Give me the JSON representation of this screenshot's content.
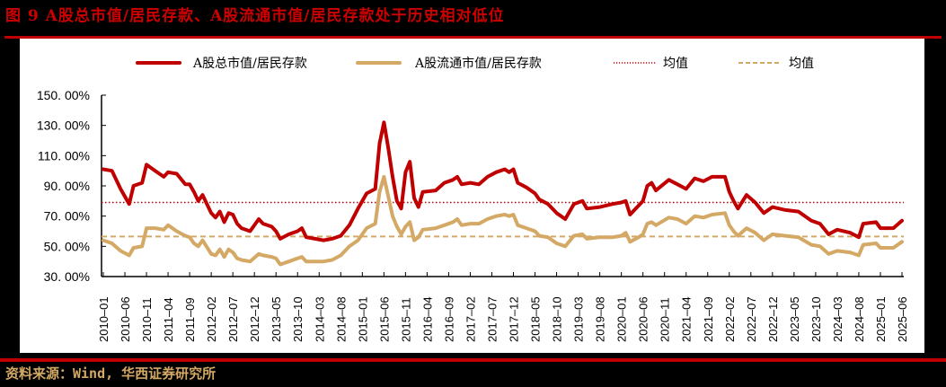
{
  "title": "图 9 A股总市值/居民存款、A股流通市值/居民存款处于历史相对低位",
  "source": "资料来源：Wind, 华西证券研究所",
  "colors": {
    "accent": "#c00000",
    "series_total": "#c00000",
    "series_float": "#d4a865",
    "background": "#000000",
    "panel": "#ffffff"
  },
  "legend": [
    {
      "label": "A股总市值/居民存款",
      "style": "solid",
      "color": "#c00000"
    },
    {
      "label": "A股流通市值/居民存款",
      "style": "solid",
      "color": "#d4a865"
    },
    {
      "label": "均值",
      "style": "dotted",
      "color": "#c00000"
    },
    {
      "label": "均值",
      "style": "dashed",
      "color": "#d4a865"
    }
  ],
  "chart_data": {
    "type": "line",
    "title": "A股总市值/居民存款、A股流通市值/居民存款处于历史相对低位",
    "xlabel": "",
    "ylabel": "",
    "ylim": [
      30,
      150
    ],
    "yticks": [
      "30.00%",
      "50.00%",
      "70.00%",
      "90.00%",
      "110.00%",
      "130.00%",
      "150.00%"
    ],
    "xticks": [
      "2010-01",
      "2010-06",
      "2010-11",
      "2011-04",
      "2011-09",
      "2012-02",
      "2012-07",
      "2012-12",
      "2013-05",
      "2013-10",
      "2014-03",
      "2014-08",
      "2015-01",
      "2015-06",
      "2015-11",
      "2016-04",
      "2016-09",
      "2017-02",
      "2017-07",
      "2017-12",
      "2018-05",
      "2018-10",
      "2019-03",
      "2019-08",
      "2020-01",
      "2020-06",
      "2020-11",
      "2021-04",
      "2021-09",
      "2022-02",
      "2022-07",
      "2022-12",
      "2023-05",
      "2023-10",
      "2024-03",
      "2024-08",
      "2025-01",
      "2025-06"
    ],
    "grid": false,
    "legend_position": "top",
    "x": [
      "2010-01",
      "2010-03",
      "2010-05",
      "2010-07",
      "2010-08",
      "2010-10",
      "2010-11",
      "2011-01",
      "2011-03",
      "2011-04",
      "2011-06",
      "2011-08",
      "2011-09",
      "2011-10",
      "2011-11",
      "2011-12",
      "2012-02",
      "2012-03",
      "2012-04",
      "2012-05",
      "2012-06",
      "2012-07",
      "2012-08",
      "2012-09",
      "2012-11",
      "2013-01",
      "2013-02",
      "2013-04",
      "2013-05",
      "2013-06",
      "2013-08",
      "2013-10",
      "2013-11",
      "2013-12",
      "2014-02",
      "2014-04",
      "2014-06",
      "2014-08",
      "2014-10",
      "2014-12",
      "2015-02",
      "2015-04",
      "2015-05",
      "2015-06",
      "2015-07",
      "2015-08",
      "2015-09",
      "2015-10",
      "2015-11",
      "2015-12",
      "2016-01",
      "2016-02",
      "2016-03",
      "2016-06",
      "2016-08",
      "2016-10",
      "2016-11",
      "2016-12",
      "2017-02",
      "2017-04",
      "2017-06",
      "2017-08",
      "2017-10",
      "2017-11",
      "2017-12",
      "2018-01",
      "2018-03",
      "2018-05",
      "2018-06",
      "2018-08",
      "2018-10",
      "2018-12",
      "2019-02",
      "2019-04",
      "2019-05",
      "2019-08",
      "2019-11",
      "2020-01",
      "2020-02",
      "2020-03",
      "2020-05",
      "2020-06",
      "2020-07",
      "2020-08",
      "2020-09",
      "2020-12",
      "2021-02",
      "2021-04",
      "2021-06",
      "2021-08",
      "2021-10",
      "2022-01",
      "2022-02",
      "2022-03",
      "2022-04",
      "2022-06",
      "2022-08",
      "2022-10",
      "2022-12",
      "2023-03",
      "2023-06",
      "2023-09",
      "2023-11",
      "2024-01",
      "2024-03",
      "2024-06",
      "2024-08",
      "2024-09",
      "2024-12",
      "2025-01",
      "2025-04",
      "2025-06"
    ],
    "series": [
      {
        "name": "A股总市值/居民存款",
        "values": [
          101,
          100,
          88,
          78,
          90,
          92,
          104,
          100,
          96,
          99,
          98,
          91,
          91,
          86,
          80,
          84,
          72,
          69,
          73,
          66,
          72,
          71,
          65,
          62,
          60,
          68,
          65,
          63,
          60,
          55,
          58,
          60,
          62,
          56,
          55,
          54,
          55,
          57,
          64,
          75,
          85,
          88,
          118,
          132,
          115,
          96,
          80,
          75,
          99,
          106,
          82,
          76,
          86,
          87,
          92,
          94,
          96,
          91,
          92,
          91,
          96,
          99,
          101,
          99,
          101,
          92,
          89,
          85,
          81,
          78,
          72,
          68,
          78,
          80,
          75,
          76,
          78,
          79,
          80,
          71,
          77,
          80,
          90,
          92,
          87,
          94,
          91,
          88,
          95,
          93,
          96,
          96,
          86,
          80,
          75,
          84,
          79,
          72,
          76,
          74,
          73,
          67,
          65,
          58,
          61,
          59,
          56,
          65,
          66,
          62,
          62,
          67
        ]
      },
      {
        "name": "A股流通市值/居民存款",
        "values": [
          54,
          52,
          47,
          44,
          49,
          50,
          62,
          62,
          61,
          64,
          60,
          57,
          56,
          52,
          50,
          54,
          45,
          44,
          48,
          43,
          48,
          46,
          42,
          41,
          40,
          45,
          44,
          43,
          42,
          38,
          40,
          42,
          43,
          40,
          40,
          40,
          41,
          44,
          50,
          54,
          62,
          65,
          86,
          96,
          83,
          70,
          63,
          58,
          63,
          66,
          54,
          56,
          61,
          62,
          64,
          66,
          68,
          64,
          65,
          65,
          68,
          70,
          71,
          70,
          71,
          64,
          62,
          60,
          57,
          56,
          52,
          50,
          57,
          58,
          55,
          56,
          56,
          57,
          59,
          53,
          56,
          58,
          65,
          66,
          64,
          69,
          68,
          65,
          70,
          69,
          71,
          72,
          64,
          60,
          57,
          62,
          59,
          54,
          58,
          57,
          56,
          51,
          50,
          45,
          47,
          46,
          44,
          51,
          52,
          49,
          49,
          53
        ]
      },
      {
        "name": "均值 (总市值)",
        "values": [
          79
        ],
        "style": "dotted"
      },
      {
        "name": "均值 (流通市值)",
        "values": [
          56.5
        ],
        "style": "dashed"
      }
    ]
  }
}
